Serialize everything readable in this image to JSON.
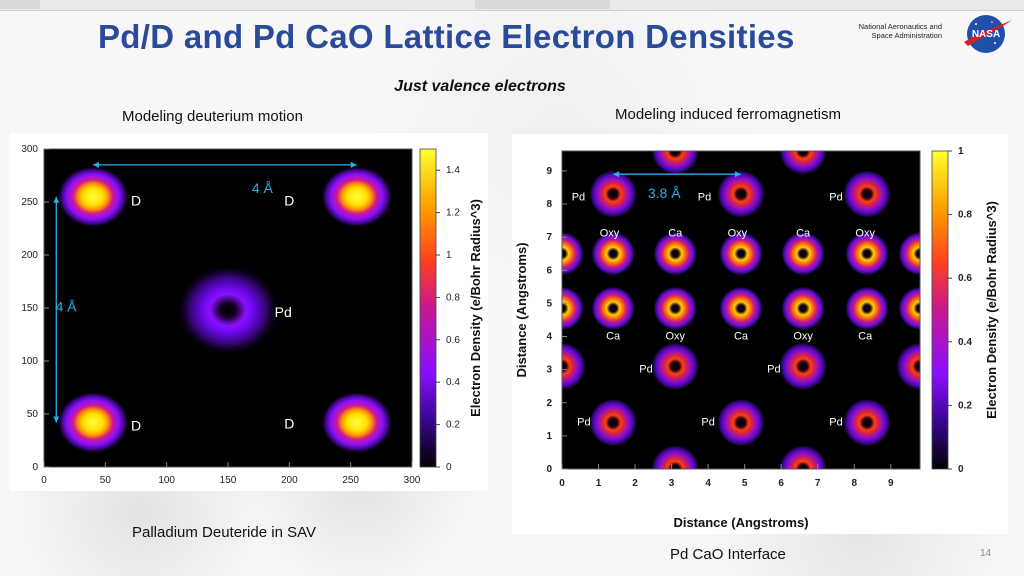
{
  "title": "Pd/D and Pd CaO Lattice Electron Densities",
  "agency": [
    "National Aeronautics and",
    "Space Administration"
  ],
  "logo_text": "NASA",
  "subtitle": "Just valence electrons",
  "captions": {
    "left_top": "Modeling deuterium motion",
    "right_top": "Modeling induced ferromagnetism",
    "left_bottom": "Palladium Deuteride in SAV",
    "right_bottom": "Pd CaO Interface"
  },
  "slide_number": "14",
  "chart_data": [
    {
      "type": "heatmap",
      "x_ticks": [
        "0",
        "50",
        "100",
        "150",
        "200",
        "250",
        "300"
      ],
      "y_ticks": [
        "0",
        "50",
        "100",
        "150",
        "200",
        "250",
        "300"
      ],
      "xlim": [
        0,
        300
      ],
      "ylim": [
        0,
        300
      ],
      "colorbar_label": "Electron Density (e/Bohr Radius^3)",
      "colorbar_ticks": [
        "0",
        "0.2",
        "0.4",
        "0.6",
        "0.8",
        "1",
        "1.2",
        "1.4"
      ],
      "colorbar_range": [
        0,
        1.5
      ],
      "annotations": [
        {
          "text": "D",
          "x": 75,
          "y": 250
        },
        {
          "text": "D",
          "x": 200,
          "y": 250
        },
        {
          "text": "4 Å",
          "x": 178,
          "y": 262
        },
        {
          "text": "4 Å",
          "x": 18,
          "y": 150
        },
        {
          "text": "Pd",
          "x": 195,
          "y": 145
        },
        {
          "text": "D",
          "x": 75,
          "y": 38
        },
        {
          "text": "D",
          "x": 200,
          "y": 40
        }
      ],
      "peaks": [
        {
          "x": 40,
          "y": 255,
          "kind": "D"
        },
        {
          "x": 255,
          "y": 255,
          "kind": "D"
        },
        {
          "x": 40,
          "y": 42,
          "kind": "D"
        },
        {
          "x": 255,
          "y": 42,
          "kind": "D"
        },
        {
          "x": 150,
          "y": 148,
          "kind": "Pd"
        }
      ]
    },
    {
      "type": "heatmap",
      "xlabel": "Distance (Angstroms)",
      "ylabel": "Distance (Angstroms)",
      "x_ticks": [
        "0",
        "1",
        "2",
        "3",
        "4",
        "5",
        "6",
        "7",
        "8",
        "9"
      ],
      "y_ticks": [
        "0",
        "1",
        "2",
        "3",
        "4",
        "5",
        "6",
        "7",
        "8",
        "9"
      ],
      "xlim": [
        0,
        9.8
      ],
      "ylim": [
        0,
        9.6
      ],
      "colorbar_label": "Electron Density (e/Bohr Radius^3)",
      "colorbar_ticks": [
        "0",
        "0.2",
        "0.4",
        "0.6",
        "0.8",
        "1"
      ],
      "colorbar_range": [
        0,
        1
      ],
      "annotations": [
        {
          "text": "Pd",
          "x": 0.45,
          "y": 8.2
        },
        {
          "text": "3.8 Å",
          "x": 2.8,
          "y": 8.3
        },
        {
          "text": "Pd",
          "x": 3.9,
          "y": 8.2
        },
        {
          "text": "Pd",
          "x": 7.5,
          "y": 8.2
        },
        {
          "text": "Oxy",
          "x": 1.3,
          "y": 7.1
        },
        {
          "text": "Ca",
          "x": 3.1,
          "y": 7.1
        },
        {
          "text": "Oxy",
          "x": 4.8,
          "y": 7.1
        },
        {
          "text": "Ca",
          "x": 6.6,
          "y": 7.1
        },
        {
          "text": "Oxy",
          "x": 8.3,
          "y": 7.1
        },
        {
          "text": "Ca",
          "x": 1.4,
          "y": 4.0
        },
        {
          "text": "Oxy",
          "x": 3.1,
          "y": 4.0
        },
        {
          "text": "Ca",
          "x": 4.9,
          "y": 4.0
        },
        {
          "text": "Oxy",
          "x": 6.6,
          "y": 4.0
        },
        {
          "text": "Ca",
          "x": 8.3,
          "y": 4.0
        },
        {
          "text": "Pd",
          "x": 2.3,
          "y": 3.0
        },
        {
          "text": "Pd",
          "x": 5.8,
          "y": 3.0
        },
        {
          "text": "Pd",
          "x": 0.6,
          "y": 1.4
        },
        {
          "text": "Pd",
          "x": 4.0,
          "y": 1.4
        },
        {
          "text": "Pd",
          "x": 7.5,
          "y": 1.4
        }
      ],
      "peaks": [
        {
          "x": 1.4,
          "y": 8.3,
          "kind": "Pd"
        },
        {
          "x": 4.9,
          "y": 8.3,
          "kind": "Pd"
        },
        {
          "x": 8.35,
          "y": 8.3,
          "kind": "Pd"
        },
        {
          "x": 0,
          "y": 6.5,
          "kind": "Ca"
        },
        {
          "x": 1.4,
          "y": 6.5,
          "kind": "Oxy"
        },
        {
          "x": 3.1,
          "y": 6.5,
          "kind": "Ca"
        },
        {
          "x": 4.9,
          "y": 6.5,
          "kind": "Oxy"
        },
        {
          "x": 6.6,
          "y": 6.5,
          "kind": "Ca"
        },
        {
          "x": 8.35,
          "y": 6.5,
          "kind": "Oxy"
        },
        {
          "x": 9.8,
          "y": 6.5,
          "kind": "Ca"
        },
        {
          "x": 0,
          "y": 4.85,
          "kind": "Oxy"
        },
        {
          "x": 1.4,
          "y": 4.85,
          "kind": "Ca"
        },
        {
          "x": 3.1,
          "y": 4.85,
          "kind": "Oxy"
        },
        {
          "x": 4.9,
          "y": 4.85,
          "kind": "Ca"
        },
        {
          "x": 6.6,
          "y": 4.85,
          "kind": "Oxy"
        },
        {
          "x": 8.35,
          "y": 4.85,
          "kind": "Ca"
        },
        {
          "x": 9.8,
          "y": 4.85,
          "kind": "Oxy"
        },
        {
          "x": 0,
          "y": 3.1,
          "kind": "Pd"
        },
        {
          "x": 3.1,
          "y": 3.1,
          "kind": "Pd"
        },
        {
          "x": 6.6,
          "y": 3.1,
          "kind": "Pd"
        },
        {
          "x": 9.8,
          "y": 3.1,
          "kind": "Pd"
        },
        {
          "x": 1.4,
          "y": 1.4,
          "kind": "Pd"
        },
        {
          "x": 4.9,
          "y": 1.4,
          "kind": "Pd"
        },
        {
          "x": 8.35,
          "y": 1.4,
          "kind": "Pd"
        },
        {
          "x": 3.1,
          "y": 0,
          "kind": "Pd"
        },
        {
          "x": 6.6,
          "y": 0,
          "kind": "Pd"
        },
        {
          "x": 3.1,
          "y": 9.6,
          "kind": "Pd"
        },
        {
          "x": 6.6,
          "y": 9.6,
          "kind": "Pd"
        }
      ]
    }
  ]
}
